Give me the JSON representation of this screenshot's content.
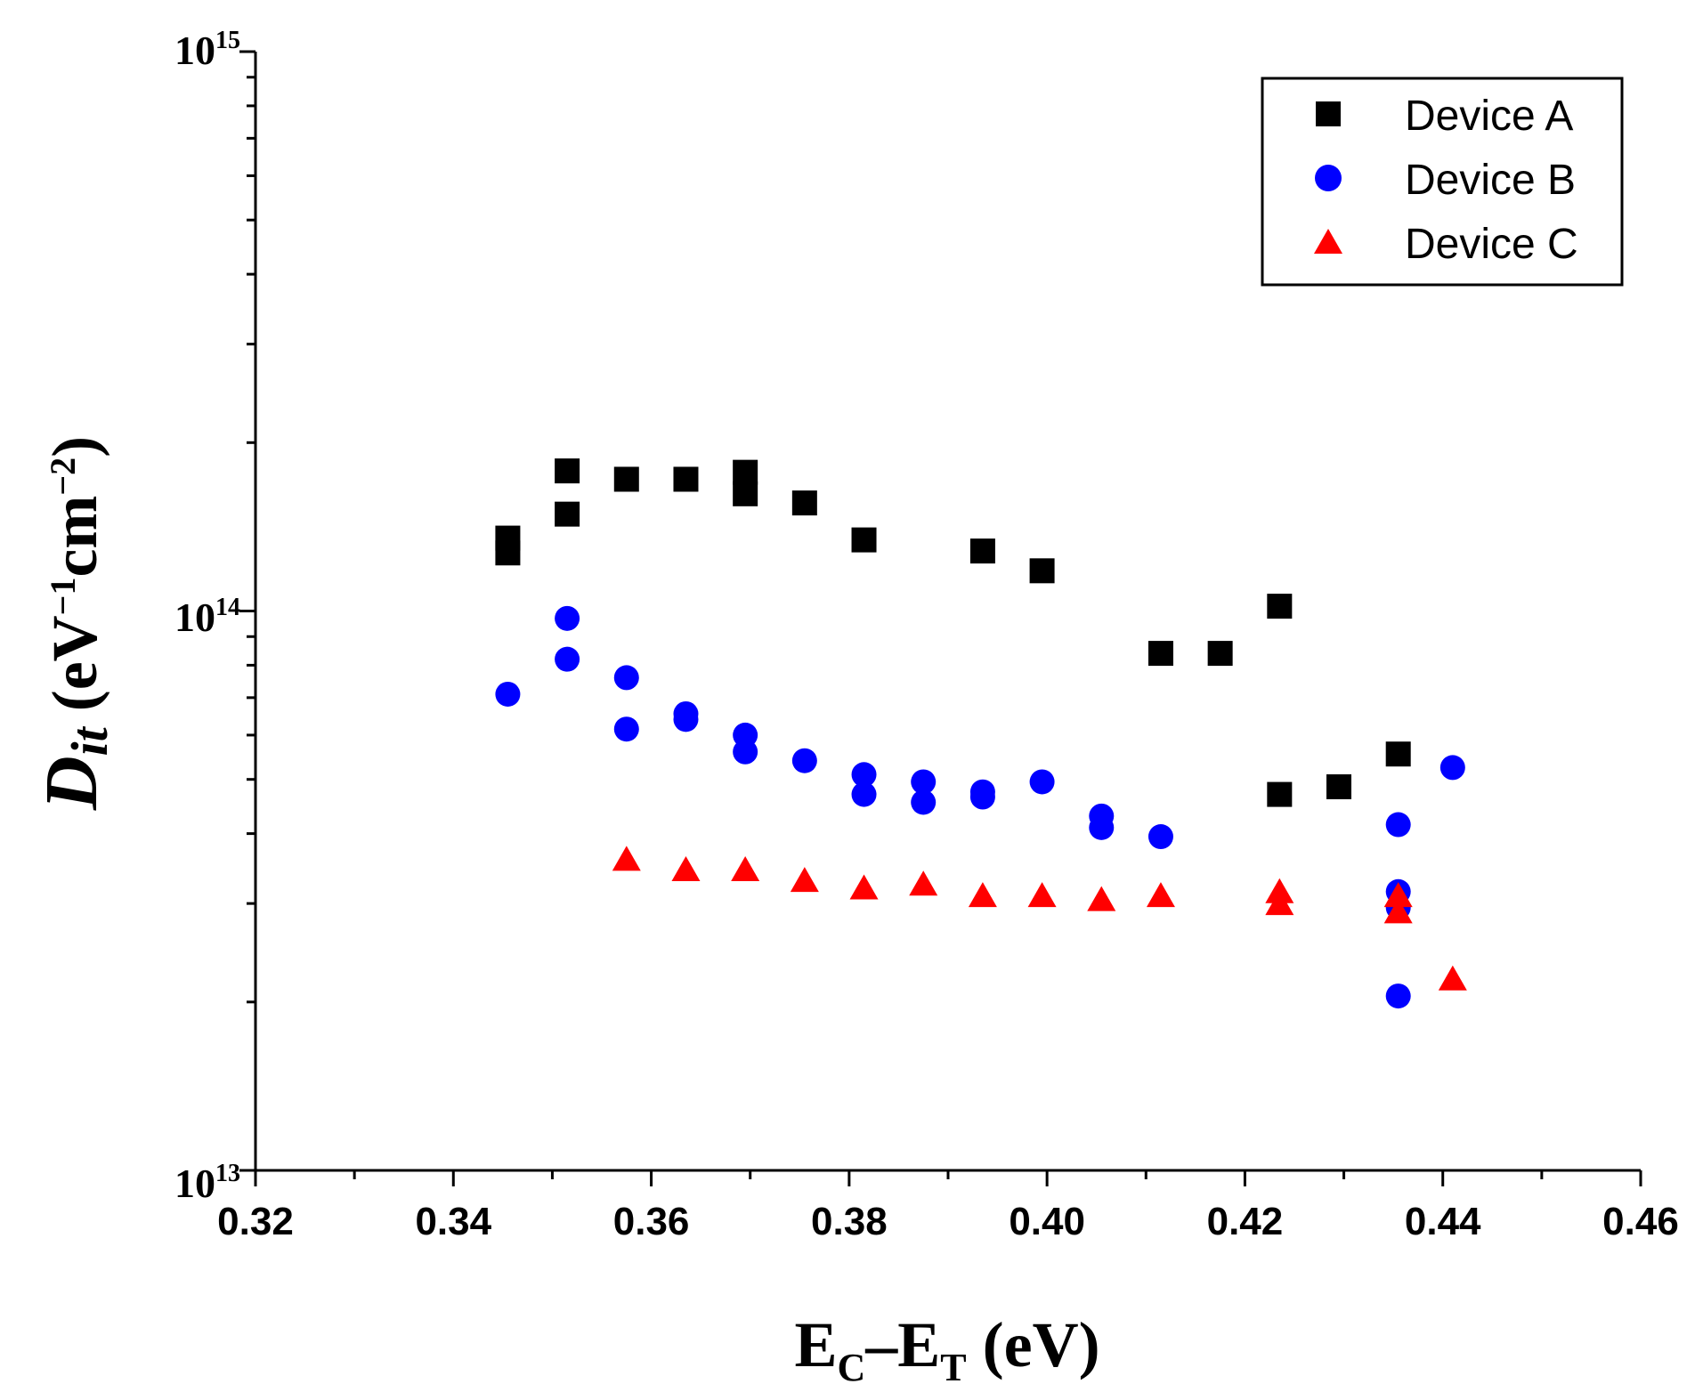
{
  "chart_data": {
    "type": "scatter",
    "title": "",
    "xlabel": {
      "E": "E",
      "C": "C",
      "dash": "–",
      "E2": "E",
      "T": "T",
      "unit": " (eV)"
    },
    "ylabel": {
      "D": "D",
      "it": "it",
      "open": " (eV",
      "exp1": "−1",
      "cm": "cm",
      "exp2": "−2",
      "close": ")"
    },
    "xlim": [
      0.32,
      0.46
    ],
    "ylim": [
      10000000000000.0,
      1000000000000000.0
    ],
    "yscale": "log",
    "xticks": [
      "0.32",
      "0.34",
      "0.36",
      "0.38",
      "0.40",
      "0.42",
      "0.44",
      "0.46"
    ],
    "yticks": [
      {
        "base": "10",
        "exp": "13",
        "value": 10000000000000.0
      },
      {
        "base": "10",
        "exp": "14",
        "value": 100000000000000.0
      },
      {
        "base": "10",
        "exp": "15",
        "value": 1000000000000000.0
      }
    ],
    "legend_position": "top-right",
    "series": [
      {
        "name": "Device A",
        "marker": "square",
        "color": "#000000",
        "points": [
          [
            0.3455,
            135000000000000.0
          ],
          [
            0.3455,
            127000000000000.0
          ],
          [
            0.3515,
            178000000000000.0
          ],
          [
            0.3515,
            149000000000000.0
          ],
          [
            0.3575,
            172000000000000.0
          ],
          [
            0.3635,
            172000000000000.0
          ],
          [
            0.3695,
            177000000000000.0
          ],
          [
            0.3695,
            162000000000000.0
          ],
          [
            0.3755,
            156000000000000.0
          ],
          [
            0.3815,
            134000000000000.0
          ],
          [
            0.3935,
            128000000000000.0
          ],
          [
            0.3995,
            118000000000000.0
          ],
          [
            0.4115,
            84000000000000.0
          ],
          [
            0.4175,
            84000000000000.0
          ],
          [
            0.4235,
            102000000000000.0
          ],
          [
            0.4235,
            47000000000000.0
          ],
          [
            0.4295,
            48500000000000.0
          ],
          [
            0.4355,
            55500000000000.0
          ]
        ]
      },
      {
        "name": "Device B",
        "marker": "circle",
        "color": "#0000ff",
        "points": [
          [
            0.3455,
            71000000000000.0
          ],
          [
            0.3515,
            97000000000000.0
          ],
          [
            0.3515,
            82000000000000.0
          ],
          [
            0.3575,
            76000000000000.0
          ],
          [
            0.3575,
            61500000000000.0
          ],
          [
            0.3635,
            65500000000000.0
          ],
          [
            0.3635,
            64000000000000.0
          ],
          [
            0.3695,
            60000000000000.0
          ],
          [
            0.3695,
            56000000000000.0
          ],
          [
            0.3755,
            54000000000000.0
          ],
          [
            0.3815,
            51000000000000.0
          ],
          [
            0.3815,
            47000000000000.0
          ],
          [
            0.3875,
            49500000000000.0
          ],
          [
            0.3875,
            45500000000000.0
          ],
          [
            0.3935,
            47500000000000.0
          ],
          [
            0.3935,
            46500000000000.0
          ],
          [
            0.3995,
            49500000000000.0
          ],
          [
            0.4055,
            43000000000000.0
          ],
          [
            0.4055,
            41000000000000.0
          ],
          [
            0.4115,
            39500000000000.0
          ],
          [
            0.4355,
            41500000000000.0
          ],
          [
            0.4355,
            31500000000000.0
          ],
          [
            0.4355,
            29500000000000.0
          ],
          [
            0.4355,
            20500000000000.0
          ],
          [
            0.441,
            52500000000000.0
          ]
        ]
      },
      {
        "name": "Device C",
        "marker": "triangle",
        "color": "#ff0000",
        "points": [
          [
            0.3575,
            36000000000000.0
          ],
          [
            0.3635,
            34500000000000.0
          ],
          [
            0.3695,
            34500000000000.0
          ],
          [
            0.3755,
            33000000000000.0
          ],
          [
            0.3815,
            32000000000000.0
          ],
          [
            0.3875,
            32500000000000.0
          ],
          [
            0.3935,
            31000000000000.0
          ],
          [
            0.3995,
            31000000000000.0
          ],
          [
            0.4055,
            30500000000000.0
          ],
          [
            0.4115,
            31000000000000.0
          ],
          [
            0.4235,
            31500000000000.0
          ],
          [
            0.4235,
            30000000000000.0
          ],
          [
            0.4355,
            31000000000000.0
          ],
          [
            0.4355,
            29000000000000.0
          ],
          [
            0.441,
            22000000000000.0
          ]
        ]
      }
    ]
  }
}
